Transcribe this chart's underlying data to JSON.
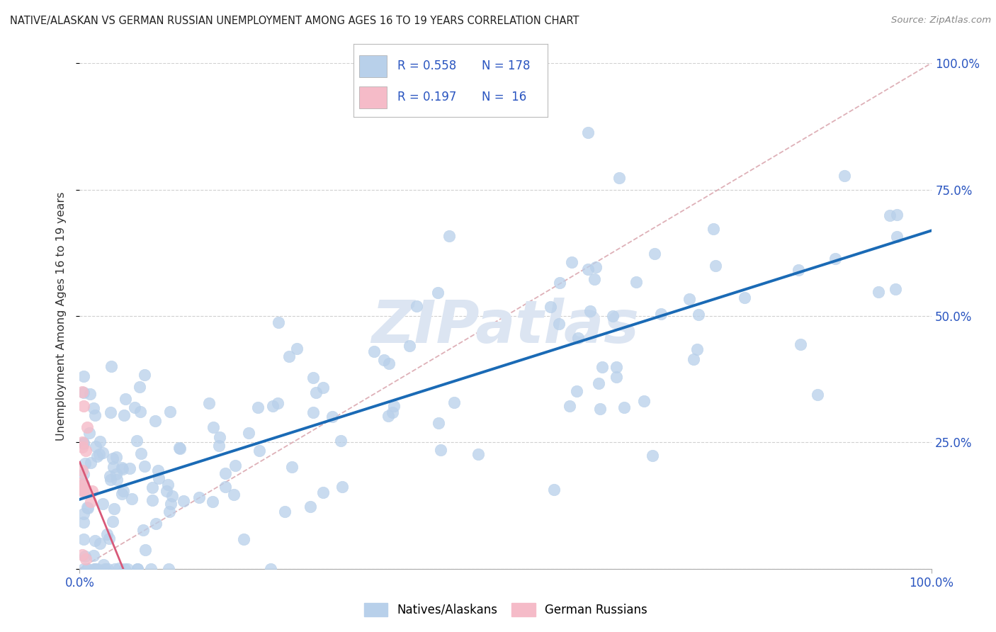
{
  "title": "NATIVE/ALASKAN VS GERMAN RUSSIAN UNEMPLOYMENT AMONG AGES 16 TO 19 YEARS CORRELATION CHART",
  "source": "Source: ZipAtlas.com",
  "ylabel": "Unemployment Among Ages 16 to 19 years",
  "native_R": "0.558",
  "native_N": "178",
  "german_R": "0.197",
  "german_N": "16",
  "native_color": "#b8d0ea",
  "german_color": "#f5bbc8",
  "native_line_color": "#1a6ab5",
  "german_line_color": "#d85878",
  "diagonal_color": "#dba8b0",
  "legend_text_color": "#2a55c0",
  "watermark_color": "#dce5f2",
  "tick_color": "#2a55c0",
  "background_color": "#ffffff",
  "grid_color": "#d0d0d0",
  "title_color": "#222222",
  "source_color": "#888888",
  "native_line_intercept": 0.15,
  "native_line_slope": 0.5,
  "german_line_intercept": 0.2,
  "german_line_slope": 0.1
}
